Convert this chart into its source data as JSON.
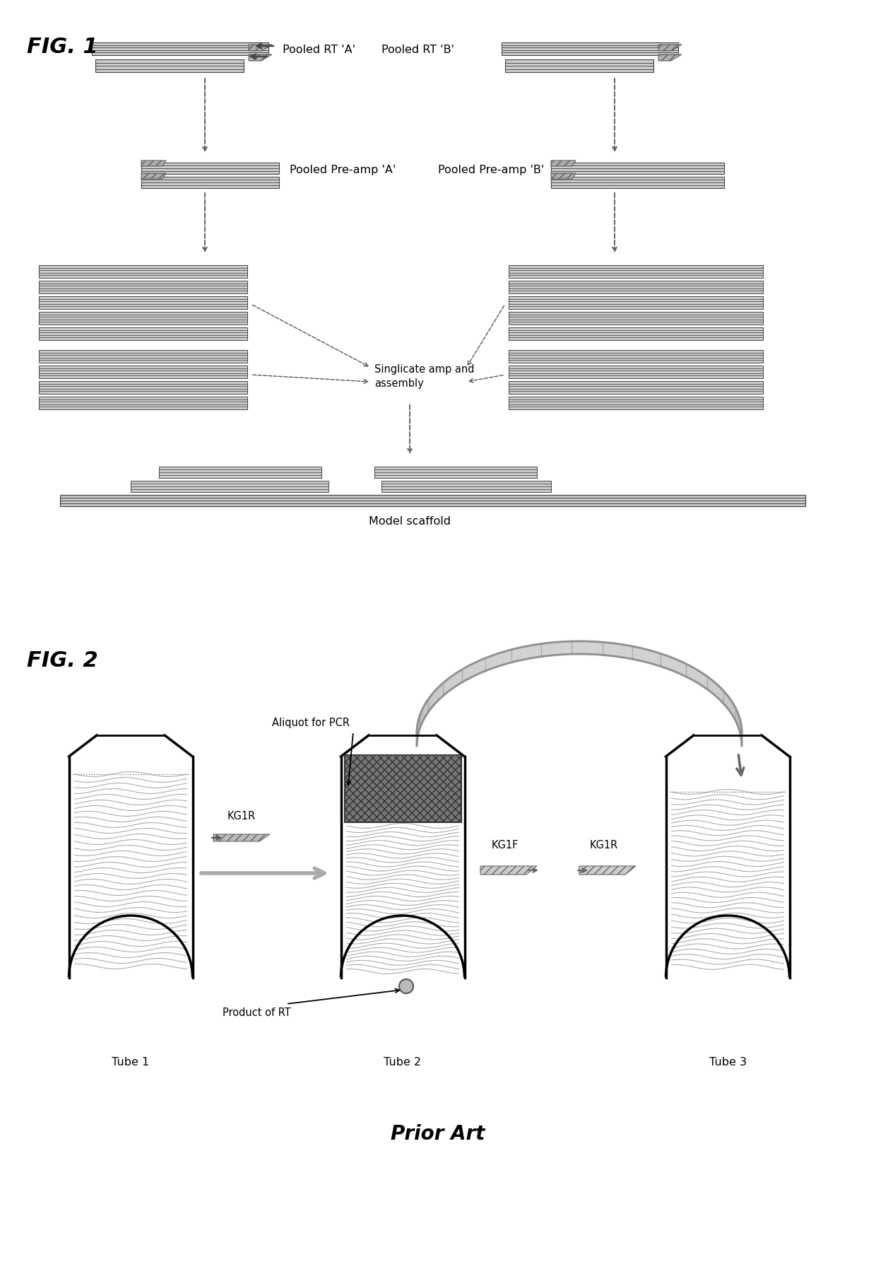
{
  "fig1_label": "FIG. 1",
  "fig2_label": "FIG. 2",
  "prior_art_label": "Prior Art",
  "pooled_rt_a": "Pooled RT 'A'",
  "pooled_rt_b": "Pooled RT 'B'",
  "pooled_preamp_a": "Pooled Pre-amp 'A'",
  "pooled_preamp_b": "Pooled Pre-amp 'B'",
  "singlicate": "Singlicate amp and\nassembly",
  "model_scaffold": "Model scaffold",
  "aliquot": "Aliquot for PCR",
  "product_rt": "Product of RT",
  "kg1r_left": "KG1R",
  "kg1f": "KG1F",
  "kg1r_right": "KG1R",
  "tube1": "Tube 1",
  "tube2": "Tube 2",
  "tube3": "Tube 3",
  "bg_color": "#ffffff",
  "line_color": "#000000",
  "band_color": "#333333",
  "band_bg": "#d8d8d8",
  "arrow_color": "#555555",
  "gray_arrow": "#aaaaaa",
  "tube_fill": "#777777"
}
